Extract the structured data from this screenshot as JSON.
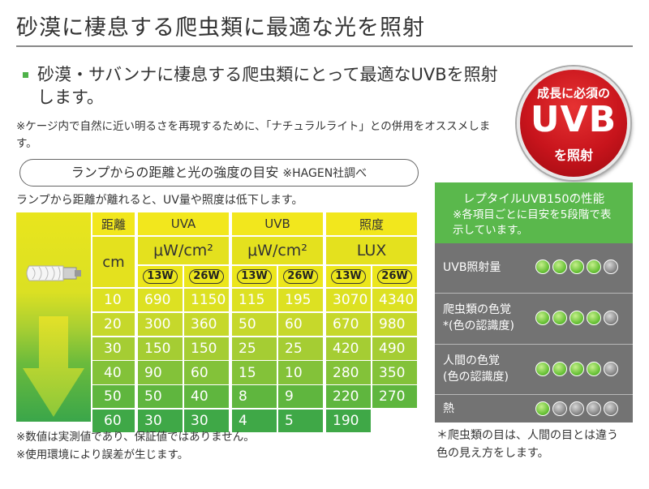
{
  "title": "砂漠に棲息する爬虫類に最適な光を照射",
  "lead": "砂漠・サバンナに棲息する爬虫類にとって最適なUVBを照射します。",
  "note1": "※ケージ内で自然に近い明るさを再現するために、「ナチュラルライト」との併用をオススメします。",
  "badge": {
    "line1": "成長に必須の",
    "line2": "UVB",
    "line3": "を照射"
  },
  "pill": {
    "main": "ランプからの距離と光の強度の目安",
    "source": "※HAGEN社調べ"
  },
  "sub": "ランプから距離が離れると、UV量や照度は低下します。",
  "table": {
    "dist_header": "距離",
    "dist_unit": "cm",
    "groups": [
      {
        "name": "UVA",
        "unit": "μW/cm²"
      },
      {
        "name": "UVB",
        "unit": "μW/cm²"
      },
      {
        "name": "照度",
        "unit": "LUX"
      }
    ],
    "watts": [
      "13W",
      "26W",
      "13W",
      "26W",
      "13W",
      "26W"
    ],
    "distances": [
      "10",
      "20",
      "30",
      "40",
      "50",
      "60"
    ],
    "rows": [
      [
        "690",
        "1150",
        "115",
        "195",
        "3070",
        "4340"
      ],
      [
        "300",
        "360",
        "50",
        "60",
        "670",
        "980"
      ],
      [
        "150",
        "150",
        "25",
        "25",
        "420",
        "490"
      ],
      [
        "90",
        "60",
        "15",
        "10",
        "280",
        "350"
      ],
      [
        "50",
        "40",
        "8",
        "9",
        "220",
        "270"
      ],
      [
        "30",
        "30",
        "4",
        "5",
        "190",
        ""
      ]
    ]
  },
  "footnotes": [
    "※数値は実測値であり、保証値ではありません。",
    "※使用環境により誤差が生じます。"
  ],
  "panel": {
    "title": "レプタイルUVB150の性能",
    "subtitle": "※各項目ごとに目安を5段階で表示しています。",
    "items": [
      {
        "label": "UVB照射量",
        "label2": "",
        "level": 4
      },
      {
        "label": "爬虫類の色覚",
        "label2": "*(色の認識度)",
        "level": 4
      },
      {
        "label": "人間の色覚",
        "label2": "(色の認識度)",
        "level": 4
      },
      {
        "label": "熱",
        "label2": "",
        "level": 1
      }
    ],
    "max_level": 5
  },
  "panel_note": [
    "＊爬虫類の目は、人間の目とは違う",
    "色の見え方をします。"
  ],
  "colors": {
    "accent_green": "#5ab84c",
    "badge_red": "#c8141c",
    "header_yellow": "#f2e71d",
    "panel_gray": "#737373"
  }
}
